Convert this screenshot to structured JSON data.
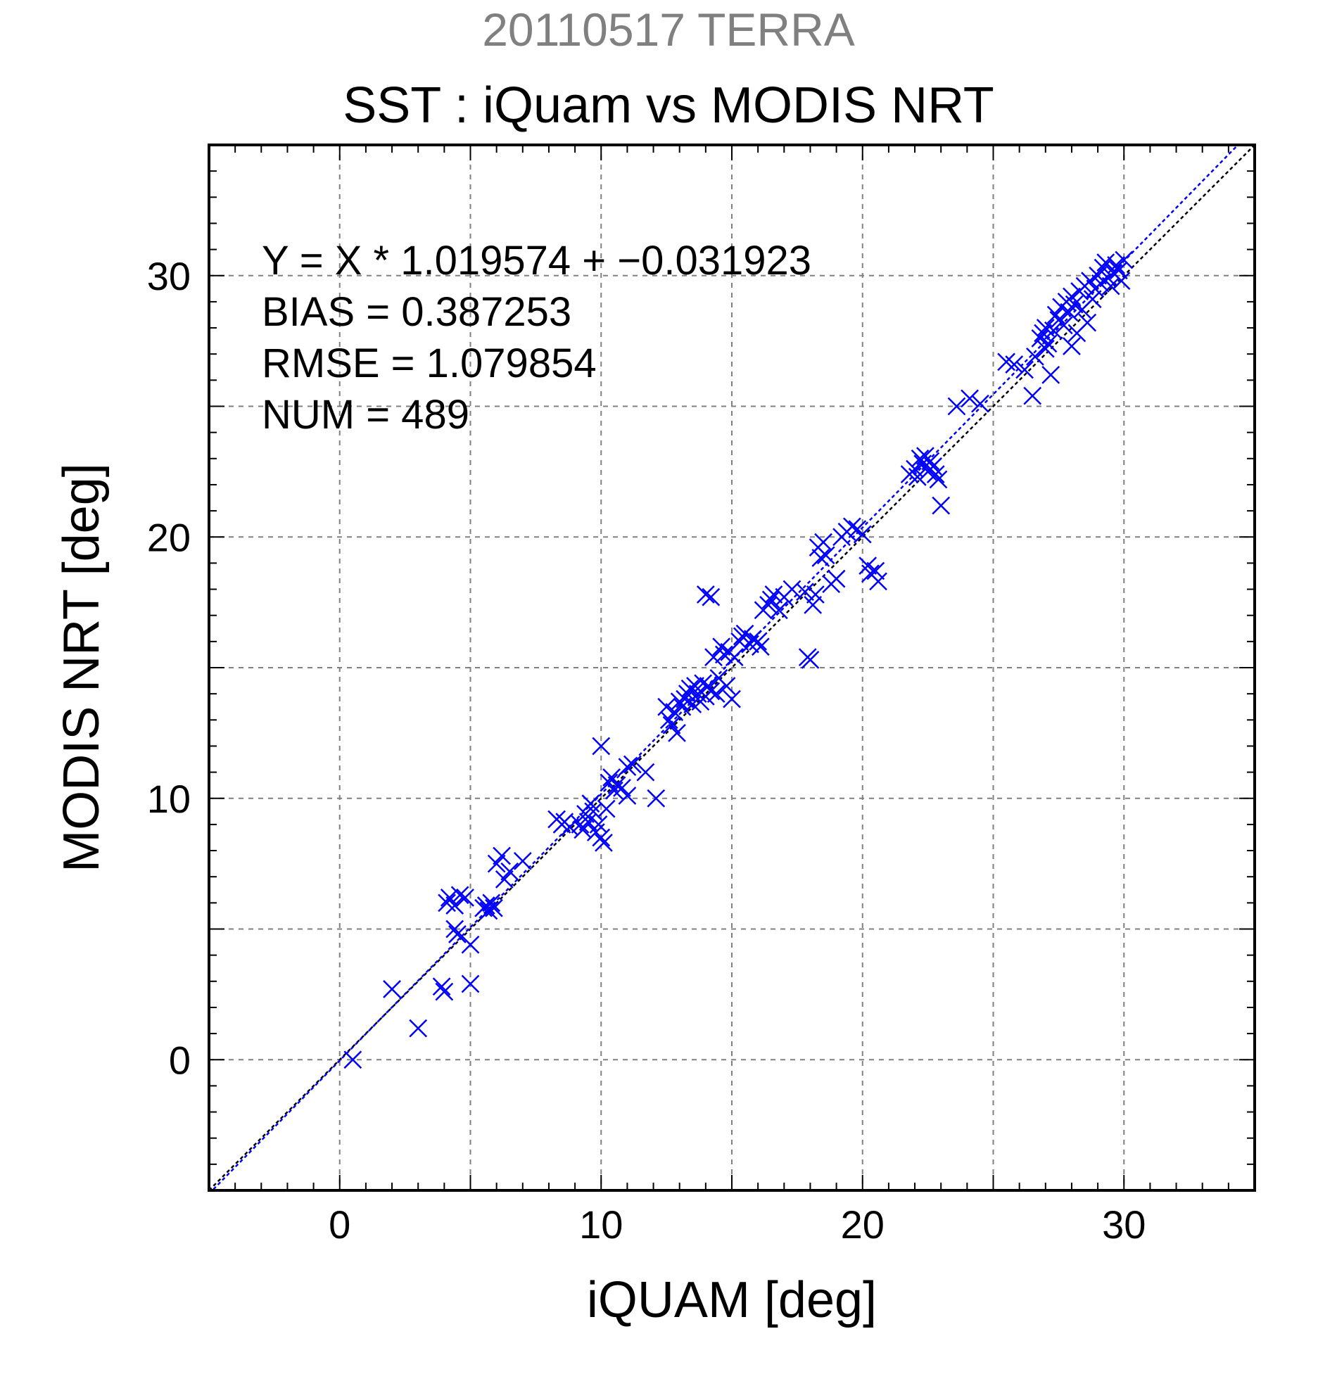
{
  "figure": {
    "suptitle": "20110517 TERRA",
    "title": "SST : iQuam vs MODIS NRT"
  },
  "chart_data": {
    "type": "scatter",
    "xlabel": "iQUAM [deg]",
    "ylabel": "MODIS NRT [deg]",
    "xlim": [
      -5,
      35
    ],
    "ylim": [
      -5,
      35
    ],
    "xticks": [
      0,
      10,
      20,
      30
    ],
    "yticks": [
      0,
      10,
      20,
      30
    ],
    "grid": true,
    "annotations": [
      "Y = X * 1.019574 + −0.031923",
      "BIAS = 0.387253",
      "RMSE = 1.079854",
      "NUM = 489"
    ],
    "lines": [
      {
        "kind": "identity",
        "slope": 1.0,
        "intercept": 0.0,
        "color": "#000000",
        "style": "dotted"
      },
      {
        "kind": "fit",
        "slope": 1.019574,
        "intercept": -0.031923,
        "color": "#0000ff",
        "style": "dotted"
      }
    ],
    "marker_color": "#0000ff",
    "series": [
      {
        "marker": "x",
        "points": [
          [
            0.5,
            0.0
          ],
          [
            2.0,
            2.7
          ],
          [
            3.0,
            1.2
          ],
          [
            3.9,
            2.8
          ],
          [
            4.0,
            2.6
          ],
          [
            4.1,
            6.0
          ],
          [
            4.2,
            6.2
          ],
          [
            4.4,
            5.9
          ],
          [
            4.4,
            5.0
          ],
          [
            4.5,
            4.8
          ],
          [
            4.6,
            6.3
          ],
          [
            4.8,
            6.2
          ],
          [
            5.0,
            4.4
          ],
          [
            5.0,
            2.9
          ],
          [
            5.5,
            5.8
          ],
          [
            5.6,
            5.9
          ],
          [
            5.7,
            5.7
          ],
          [
            5.8,
            6.0
          ],
          [
            5.9,
            5.8
          ],
          [
            6.0,
            7.5
          ],
          [
            6.2,
            7.8
          ],
          [
            6.3,
            6.9
          ],
          [
            6.5,
            7.2
          ],
          [
            7.0,
            7.6
          ],
          [
            8.3,
            9.2
          ],
          [
            8.5,
            9.0
          ],
          [
            8.6,
            9.1
          ],
          [
            8.8,
            8.9
          ],
          [
            9.2,
            9.0
          ],
          [
            9.3,
            8.8
          ],
          [
            9.4,
            9.4
          ],
          [
            9.5,
            9.1
          ],
          [
            9.6,
            9.8
          ],
          [
            9.7,
            9.5
          ],
          [
            9.8,
            8.7
          ],
          [
            9.9,
            9.0
          ],
          [
            10.0,
            12.0
          ],
          [
            10.0,
            8.5
          ],
          [
            10.1,
            8.3
          ],
          [
            10.2,
            9.6
          ],
          [
            10.3,
            10.6
          ],
          [
            10.4,
            10.8
          ],
          [
            10.5,
            10.3
          ],
          [
            10.6,
            10.5
          ],
          [
            10.8,
            10.4
          ],
          [
            11.0,
            11.2
          ],
          [
            11.2,
            11.3
          ],
          [
            11.0,
            10.1
          ],
          [
            11.7,
            11.0
          ],
          [
            12.1,
            10.0
          ],
          [
            12.5,
            13.5
          ],
          [
            12.6,
            13.0
          ],
          [
            12.7,
            12.8
          ],
          [
            12.8,
            13.3
          ],
          [
            12.9,
            12.5
          ],
          [
            13.0,
            13.7
          ],
          [
            13.1,
            13.5
          ],
          [
            13.2,
            13.8
          ],
          [
            13.3,
            14.0
          ],
          [
            13.4,
            14.2
          ],
          [
            13.5,
            13.6
          ],
          [
            13.6,
            14.3
          ],
          [
            13.7,
            14.0
          ],
          [
            13.8,
            13.7
          ],
          [
            13.9,
            14.4
          ],
          [
            14.0,
            13.9
          ],
          [
            14.0,
            17.8
          ],
          [
            14.2,
            17.7
          ],
          [
            14.1,
            14.3
          ],
          [
            14.2,
            14.1
          ],
          [
            14.3,
            15.4
          ],
          [
            14.4,
            14.0
          ],
          [
            14.5,
            14.6
          ],
          [
            14.6,
            15.8
          ],
          [
            14.7,
            15.5
          ],
          [
            14.8,
            14.3
          ],
          [
            14.9,
            15.6
          ],
          [
            15.0,
            13.8
          ],
          [
            15.1,
            15.4
          ],
          [
            15.3,
            16.0
          ],
          [
            15.4,
            16.2
          ],
          [
            15.5,
            16.3
          ],
          [
            15.7,
            15.9
          ],
          [
            15.8,
            16.1
          ],
          [
            16.0,
            16.0
          ],
          [
            16.1,
            15.8
          ],
          [
            16.2,
            17.2
          ],
          [
            16.4,
            17.4
          ],
          [
            16.5,
            17.6
          ],
          [
            16.6,
            17.8
          ],
          [
            16.8,
            17.2
          ],
          [
            17.0,
            17.7
          ],
          [
            17.3,
            18.0
          ],
          [
            17.8,
            17.9
          ],
          [
            17.9,
            15.4
          ],
          [
            18.0,
            15.3
          ],
          [
            18.1,
            17.4
          ],
          [
            18.2,
            17.8
          ],
          [
            18.3,
            19.6
          ],
          [
            18.4,
            19.2
          ],
          [
            18.5,
            19.8
          ],
          [
            18.6,
            19.3
          ],
          [
            18.8,
            18.2
          ],
          [
            19.0,
            18.4
          ],
          [
            19.2,
            20.0
          ],
          [
            19.4,
            20.2
          ],
          [
            19.6,
            20.4
          ],
          [
            19.8,
            20.3
          ],
          [
            20.0,
            20.1
          ],
          [
            20.2,
            18.9
          ],
          [
            20.3,
            18.6
          ],
          [
            20.5,
            18.7
          ],
          [
            20.6,
            18.3
          ],
          [
            21.8,
            22.4
          ],
          [
            22.0,
            22.6
          ],
          [
            22.1,
            22.3
          ],
          [
            22.2,
            23.0
          ],
          [
            22.3,
            22.8
          ],
          [
            22.4,
            23.1
          ],
          [
            22.5,
            22.5
          ],
          [
            22.6,
            22.9
          ],
          [
            22.7,
            22.7
          ],
          [
            22.8,
            22.4
          ],
          [
            22.9,
            22.2
          ],
          [
            23.0,
            21.2
          ],
          [
            23.6,
            25.0
          ],
          [
            24.1,
            25.3
          ],
          [
            24.5,
            25.1
          ],
          [
            25.5,
            26.7
          ],
          [
            25.8,
            26.6
          ],
          [
            26.2,
            26.4
          ],
          [
            26.5,
            25.4
          ],
          [
            26.6,
            26.9
          ],
          [
            26.8,
            27.6
          ],
          [
            26.9,
            27.8
          ],
          [
            27.0,
            28.0
          ],
          [
            27.0,
            27.2
          ],
          [
            27.1,
            27.4
          ],
          [
            27.2,
            26.2
          ],
          [
            27.3,
            27.9
          ],
          [
            27.4,
            28.5
          ],
          [
            27.5,
            28.3
          ],
          [
            27.6,
            28.8
          ],
          [
            27.7,
            28.1
          ],
          [
            27.8,
            29.0
          ],
          [
            27.9,
            28.6
          ],
          [
            28.0,
            27.3
          ],
          [
            28.0,
            29.2
          ],
          [
            28.1,
            28.9
          ],
          [
            28.2,
            27.8
          ],
          [
            28.3,
            29.4
          ],
          [
            28.4,
            28.7
          ],
          [
            28.5,
            29.6
          ],
          [
            28.6,
            28.2
          ],
          [
            28.7,
            29.8
          ],
          [
            28.8,
            29.1
          ],
          [
            28.9,
            29.5
          ],
          [
            29.0,
            30.0
          ],
          [
            29.1,
            29.7
          ],
          [
            29.2,
            30.3
          ],
          [
            29.3,
            30.5
          ],
          [
            29.4,
            29.9
          ],
          [
            29.5,
            29.6
          ],
          [
            29.6,
            30.1
          ],
          [
            29.7,
            30.4
          ],
          [
            29.8,
            30.2
          ],
          [
            29.9,
            29.8
          ],
          [
            30.0,
            30.6
          ]
        ]
      }
    ]
  }
}
